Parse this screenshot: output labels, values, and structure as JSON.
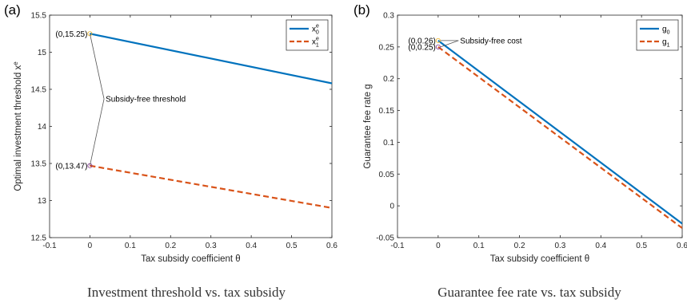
{
  "chart_data": [
    {
      "type": "line",
      "panel_label": "(a)",
      "caption": "Investment threshold vs. tax subsidy",
      "xlabel": "Tax subsidy coefficient θ",
      "ylabel_main": "Optimal investment threshold x",
      "ylabel_sup": "e",
      "xlim": [
        -0.1,
        0.6
      ],
      "ylim": [
        12.5,
        15.5
      ],
      "xticks": [
        "-0.1",
        "0",
        "0.1",
        "0.2",
        "0.3",
        "0.4",
        "0.5",
        "0.6"
      ],
      "yticks": [
        "12.5",
        "13",
        "13.5",
        "14",
        "14.5",
        "15",
        "15.5"
      ],
      "grid": false,
      "legend_position": "top-right",
      "series": [
        {
          "name": "x",
          "name_sup": "e",
          "name_sub": "0",
          "style": "solid",
          "color": "#0072BD",
          "x": [
            0,
            0.6
          ],
          "y": [
            15.25,
            14.58
          ]
        },
        {
          "name": "x",
          "name_sup": "e",
          "name_sub": "1",
          "style": "dashed",
          "color": "#D95319",
          "x": [
            0,
            0.6
          ],
          "y": [
            13.47,
            12.9
          ]
        }
      ],
      "annotations": [
        {
          "text": "(0,15.25)",
          "x": 0,
          "y": 15.25
        },
        {
          "text": "(0,13.47)",
          "x": 0,
          "y": 13.47
        },
        {
          "text": "Subsidy-free threshold",
          "x": 0.035,
          "y": 14.37
        }
      ]
    },
    {
      "type": "line",
      "panel_label": "(b)",
      "caption": "Guarantee fee rate vs. tax subsidy",
      "xlabel": "Tax subsidy coefficient θ",
      "ylabel_main": "Guarantee fee rate g",
      "xlim": [
        -0.1,
        0.6
      ],
      "ylim": [
        -0.05,
        0.3
      ],
      "xticks": [
        "-0.1",
        "0",
        "0.1",
        "0.2",
        "0.3",
        "0.4",
        "0.5",
        "0.6"
      ],
      "yticks": [
        "-0.05",
        "0",
        "0.05",
        "0.1",
        "0.15",
        "0.2",
        "0.25",
        "0.3"
      ],
      "grid": false,
      "legend_position": "top-right",
      "series": [
        {
          "name": "g",
          "name_sub": "0",
          "style": "solid",
          "color": "#0072BD",
          "x": [
            0,
            0.6
          ],
          "y": [
            0.26,
            -0.028
          ]
        },
        {
          "name": "g",
          "name_sub": "1",
          "style": "dashed",
          "color": "#D95319",
          "x": [
            0,
            0.6
          ],
          "y": [
            0.25,
            -0.035
          ]
        }
      ],
      "annotations": [
        {
          "text": "(0,0.26)",
          "x": 0,
          "y": 0.26
        },
        {
          "text": "(0,0.25)",
          "x": 0,
          "y": 0.25
        },
        {
          "text": "Subsidy-free cost",
          "x": 0.05,
          "y": 0.26
        }
      ]
    }
  ]
}
